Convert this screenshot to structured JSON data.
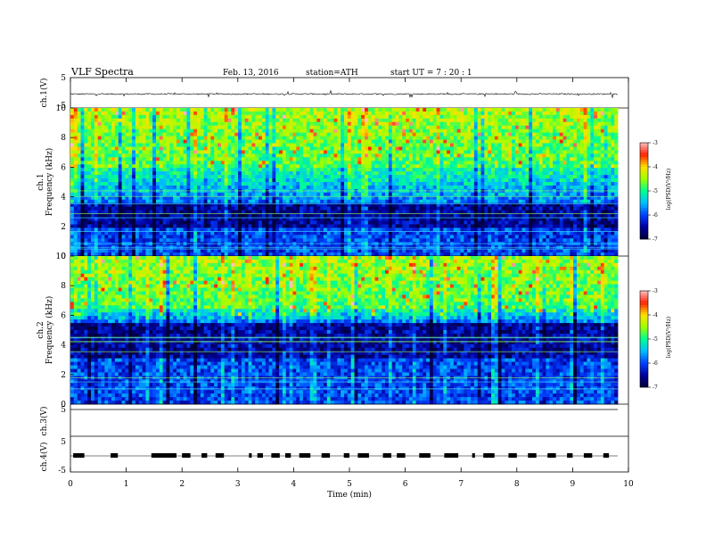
{
  "header": {
    "title": "VLF  Spectra",
    "date": "Feb. 13, 2016",
    "station": "station=ATH",
    "start": "start  UT  =   7  : 20 : 1"
  },
  "chart_data": [
    {
      "type": "line",
      "panel": "ch1-waveform",
      "ylabel": "ch.1(V)",
      "ylim": [
        -5,
        5
      ],
      "yticks": [
        "5",
        "-5"
      ],
      "baseline": -0.4,
      "noise_amplitude": 0.4
    },
    {
      "type": "heatmap",
      "panel": "ch1-spectrogram",
      "ylabel_channel": "ch.1",
      "ylabel": "Frequency  (kHz)",
      "ylim": [
        0,
        10
      ],
      "yticks": [
        "0",
        "2",
        "4",
        "6",
        "8",
        "10"
      ],
      "colorbar_label": "log(PSD(V²/Hz)",
      "colorbar_range": [
        -7,
        -3
      ],
      "colorbar_ticks": [
        "-3",
        "-4",
        "-5",
        "-6",
        "-7"
      ],
      "colormap": [
        "#000033",
        "#0000a0",
        "#0040ff",
        "#00c0ff",
        "#00ff90",
        "#a0ff00",
        "#ffe000",
        "#ff2000",
        "#ffc0c0"
      ],
      "green_band_khz": [
        6,
        10
      ],
      "dark_band_khz": [
        2,
        3.5
      ]
    },
    {
      "type": "heatmap",
      "panel": "ch2-spectrogram",
      "ylabel_channel": "ch.2",
      "ylabel": "Frequency  (kHz)",
      "ylim": [
        0,
        10
      ],
      "yticks": [
        "0",
        "2",
        "4",
        "6",
        "8",
        "10"
      ],
      "colorbar_label": "log(PSD(V²/Hz)",
      "colorbar_range": [
        -7,
        -3
      ],
      "colorbar_ticks": [
        "-3",
        "-4",
        "-5",
        "-6",
        "-7"
      ],
      "green_band_khz": [
        6.5,
        10
      ],
      "dark_band_khz": [
        3,
        5.5
      ]
    },
    {
      "type": "line",
      "panel": "ch3-waveform",
      "ylabel": "ch.3(V)",
      "ylim": [
        -5,
        5
      ],
      "yticks": [
        "5"
      ],
      "baseline": 5
    },
    {
      "type": "line",
      "panel": "ch4-waveform",
      "ylabel": "ch.4(V)",
      "ylim": [
        -5,
        5
      ],
      "yticks": [
        "5",
        "-5"
      ],
      "baseline": 0,
      "pulse_segments_min": [
        [
          0.05,
          0.25
        ],
        [
          0.72,
          0.85
        ],
        [
          1.45,
          1.9
        ],
        [
          2.0,
          2.15
        ],
        [
          2.35,
          2.45
        ],
        [
          2.6,
          2.75
        ],
        [
          3.2,
          3.25
        ],
        [
          3.35,
          3.45
        ],
        [
          3.6,
          3.75
        ],
        [
          3.85,
          3.95
        ],
        [
          4.1,
          4.3
        ],
        [
          4.5,
          4.65
        ],
        [
          4.9,
          5.0
        ],
        [
          5.15,
          5.35
        ],
        [
          5.6,
          5.75
        ],
        [
          5.85,
          6.0
        ],
        [
          6.25,
          6.45
        ],
        [
          6.7,
          6.95
        ],
        [
          7.2,
          7.25
        ],
        [
          7.4,
          7.6
        ],
        [
          7.85,
          8.0
        ],
        [
          8.2,
          8.35
        ],
        [
          8.55,
          8.7
        ],
        [
          8.9,
          9.0
        ],
        [
          9.2,
          9.35
        ],
        [
          9.55,
          9.65
        ]
      ]
    },
    {
      "type": "axis",
      "panel": "time-axis",
      "xlabel": "Time  (min)",
      "xlim": [
        0,
        10
      ],
      "xticks": [
        "0",
        "1",
        "2",
        "3",
        "4",
        "5",
        "6",
        "7",
        "8",
        "9",
        "10"
      ]
    }
  ]
}
